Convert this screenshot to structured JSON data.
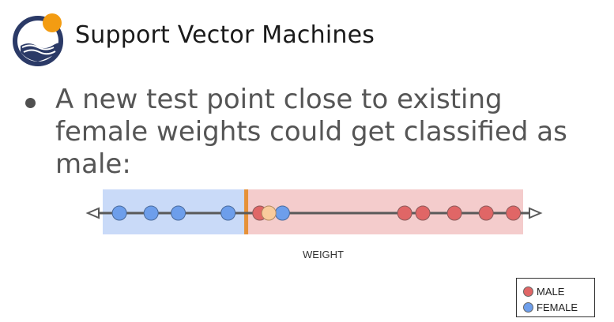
{
  "header": {
    "title": "Support Vector Machines"
  },
  "bullet": {
    "text": "A new test point close to existing female weights could get classified as male:"
  },
  "diagram": {
    "axis_label": "WEIGHT",
    "female_points": [
      0.07,
      0.14,
      0.2,
      0.31,
      0.43
    ],
    "male_points": [
      0.38,
      0.7,
      0.74,
      0.81,
      0.88,
      0.94
    ],
    "test_point": 0.4,
    "boundary": 0.35,
    "colors": {
      "female": "#6d9eeb",
      "male": "#e06666",
      "test": "#f9cb9c",
      "female_region": "#c9daf8",
      "male_region": "#f4cccc",
      "boundary": "#e69138",
      "axis": "#595959"
    }
  },
  "legend": {
    "items": [
      {
        "label": "MALE",
        "color": "#e06666"
      },
      {
        "label": "FEMALE",
        "color": "#6d9eeb"
      }
    ]
  }
}
